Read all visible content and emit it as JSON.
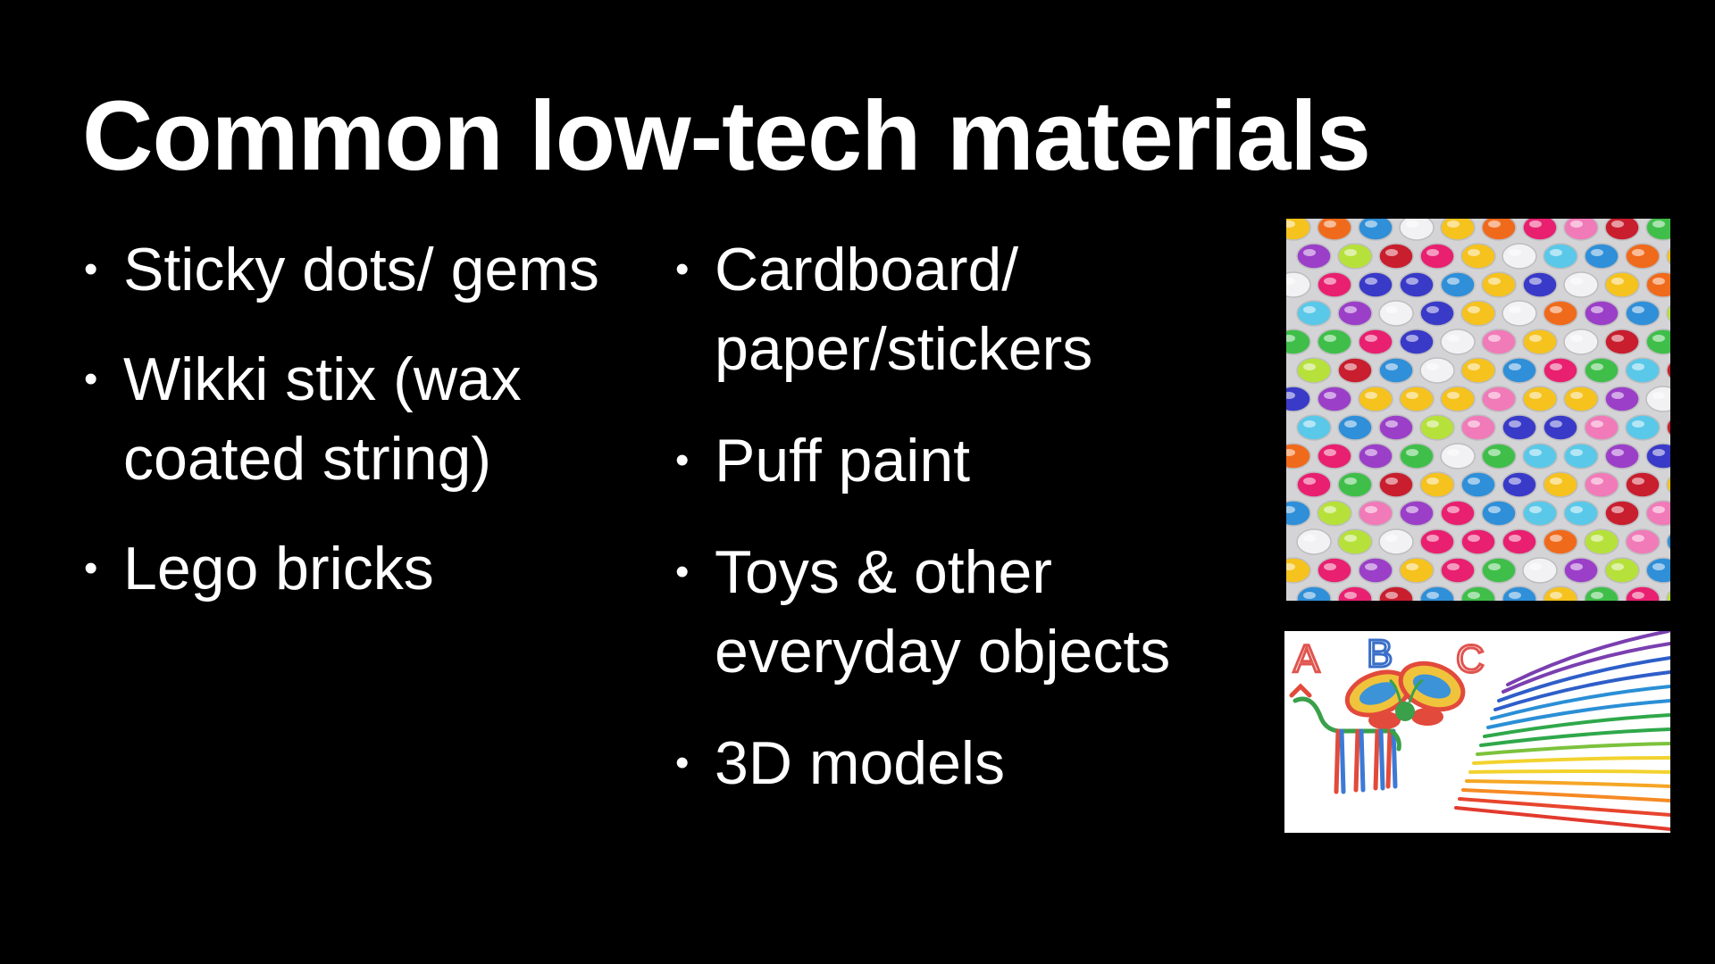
{
  "slide": {
    "title": "Common low-tech materials",
    "left_bullets": [
      "Sticky dots/ gems",
      "Wikki stix (wax coated string)",
      "Lego bricks"
    ],
    "middle_bullets": [
      "Cardboard/ paper/stickers",
      "Puff paint",
      "Toys & other everyday objects",
      "3D models"
    ],
    "images": {
      "gems_photo": "sticky-gems-photo",
      "wikki_stix_photo": "wikki-stix-art-photo",
      "wikki_letters": [
        "A",
        "B",
        "C"
      ]
    },
    "colors": {
      "background": "#000000",
      "text": "#ffffff"
    }
  }
}
